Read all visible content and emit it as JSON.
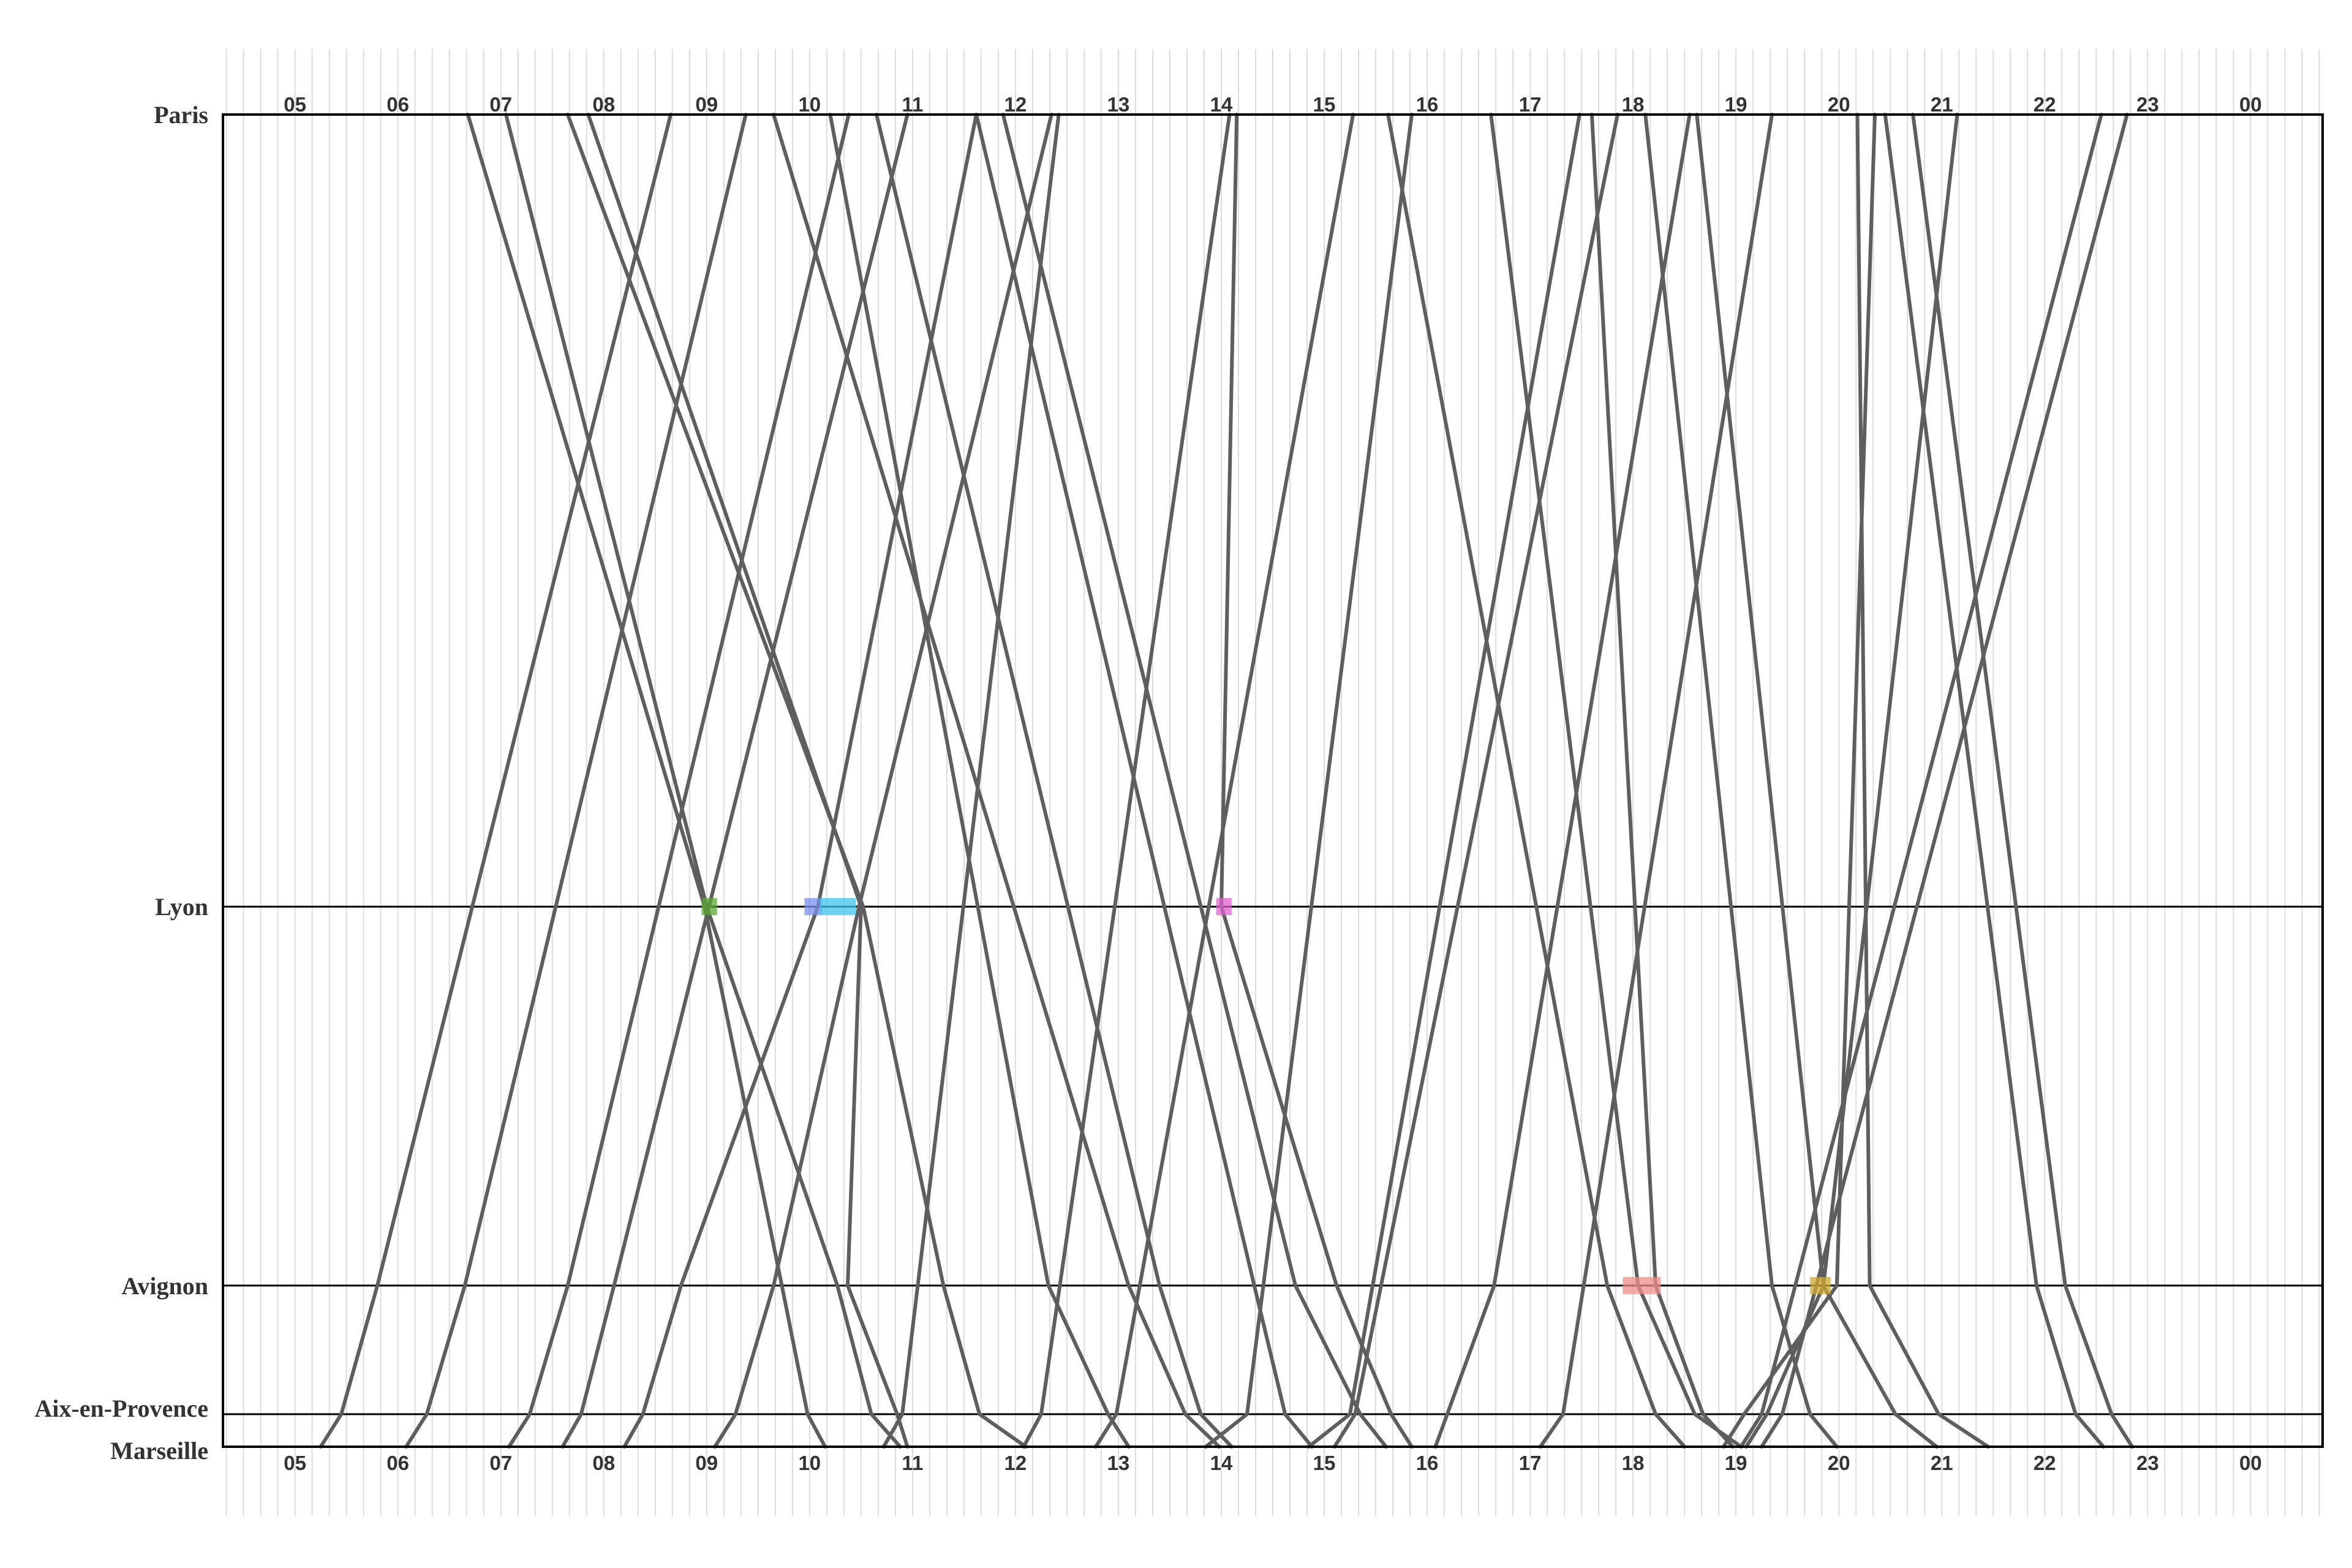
{
  "chart_data": {
    "type": "line",
    "title": "",
    "x_axis": {
      "unit": "hour",
      "range": [
        4.3,
        24.7
      ],
      "tick_labels": [
        "05",
        "06",
        "07",
        "08",
        "09",
        "10",
        "11",
        "12",
        "13",
        "14",
        "15",
        "16",
        "17",
        "18",
        "19",
        "20",
        "21",
        "22",
        "23",
        "00"
      ],
      "tick_hours": [
        5,
        6,
        7,
        8,
        9,
        10,
        11,
        12,
        13,
        14,
        15,
        16,
        17,
        18,
        19,
        20,
        21,
        22,
        23,
        24
      ],
      "minor_grid_step_min": 10,
      "labels_top_and_bottom": true
    },
    "y_axis": {
      "unit": "km",
      "range": [
        0,
        777
      ],
      "inverted": true
    },
    "stations": [
      {
        "name": "Paris",
        "km": 0
      },
      {
        "name": "Lyon",
        "km": 462
      },
      {
        "name": "Avignon",
        "km": 683
      },
      {
        "name": "Aix-en-Provence",
        "km": 758
      },
      {
        "name": "Marseille",
        "km": 777
      }
    ],
    "trips": [
      {
        "dir": "S",
        "stops": [
          [
            6.68,
            0
          ],
          [
            8.98,
            462
          ],
          [
            9.73,
            683
          ],
          [
            9.98,
            758
          ],
          [
            10.15,
            777
          ]
        ]
      },
      {
        "dir": "S",
        "stops": [
          [
            7.05,
            0
          ],
          [
            9.0,
            462
          ],
          [
            10.27,
            683
          ],
          [
            10.6,
            758
          ],
          [
            10.88,
            777
          ]
        ]
      },
      {
        "dir": "S",
        "stops": [
          [
            7.65,
            0
          ],
          [
            10.52,
            462
          ],
          [
            11.3,
            683
          ],
          [
            11.65,
            758
          ],
          [
            12.1,
            777
          ]
        ]
      },
      {
        "dir": "S",
        "stops": [
          [
            7.85,
            0
          ],
          [
            10.5,
            462
          ],
          [
            10.37,
            683
          ],
          [
            10.85,
            758
          ],
          [
            10.95,
            777
          ]
        ]
      },
      {
        "dir": "S",
        "stops": [
          [
            9.65,
            0
          ],
          [
            13.1,
            683
          ],
          [
            13.65,
            758
          ],
          [
            13.98,
            777
          ]
        ]
      },
      {
        "dir": "S",
        "stops": [
          [
            10.2,
            0
          ],
          [
            12.32,
            683
          ],
          [
            12.9,
            758
          ],
          [
            13.1,
            777
          ]
        ]
      },
      {
        "dir": "S",
        "stops": [
          [
            10.65,
            0
          ],
          [
            13.4,
            683
          ],
          [
            13.8,
            758
          ],
          [
            14.1,
            777
          ]
        ]
      },
      {
        "dir": "S",
        "stops": [
          [
            11.62,
            0
          ],
          [
            14.32,
            683
          ],
          [
            14.62,
            758
          ],
          [
            14.88,
            777
          ]
        ]
      },
      {
        "dir": "S",
        "stops": [
          [
            11.88,
            0
          ],
          [
            14.72,
            683
          ],
          [
            15.35,
            758
          ],
          [
            15.6,
            777
          ]
        ]
      },
      {
        "dir": "S",
        "stops": [
          [
            14.15,
            0
          ],
          [
            14.0,
            462
          ],
          [
            15.12,
            683
          ],
          [
            15.65,
            758
          ],
          [
            15.85,
            777
          ]
        ]
      },
      {
        "dir": "S",
        "stops": [
          [
            15.62,
            0
          ],
          [
            17.75,
            683
          ],
          [
            18.22,
            758
          ],
          [
            18.5,
            777
          ]
        ]
      },
      {
        "dir": "S",
        "stops": [
          [
            16.62,
            0
          ],
          [
            18.05,
            683
          ],
          [
            18.6,
            758
          ],
          [
            19.05,
            777
          ]
        ]
      },
      {
        "dir": "S",
        "stops": [
          [
            17.6,
            0
          ],
          [
            18.22,
            683
          ],
          [
            18.68,
            758
          ],
          [
            18.97,
            777
          ]
        ]
      },
      {
        "dir": "S",
        "stops": [
          [
            18.12,
            0
          ],
          [
            19.35,
            683
          ],
          [
            19.72,
            758
          ],
          [
            19.98,
            777
          ]
        ]
      },
      {
        "dir": "S",
        "stops": [
          [
            18.62,
            0
          ],
          [
            19.85,
            683
          ],
          [
            20.55,
            758
          ],
          [
            20.95,
            777
          ]
        ]
      },
      {
        "dir": "S",
        "stops": [
          [
            20.18,
            0
          ],
          [
            20.3,
            683
          ],
          [
            20.97,
            758
          ],
          [
            21.45,
            777
          ]
        ]
      },
      {
        "dir": "S",
        "stops": [
          [
            20.45,
            0
          ],
          [
            21.92,
            683
          ],
          [
            22.3,
            758
          ],
          [
            22.57,
            777
          ]
        ]
      },
      {
        "dir": "S",
        "stops": [
          [
            20.72,
            0
          ],
          [
            22.2,
            683
          ],
          [
            22.65,
            758
          ],
          [
            22.85,
            777
          ]
        ]
      },
      {
        "dir": "N",
        "stops": [
          [
            5.25,
            777
          ],
          [
            5.45,
            758
          ],
          [
            5.8,
            683
          ],
          [
            8.65,
            0
          ]
        ]
      },
      {
        "dir": "N",
        "stops": [
          [
            6.08,
            777
          ],
          [
            6.28,
            758
          ],
          [
            6.65,
            683
          ],
          [
            9.38,
            0
          ]
        ]
      },
      {
        "dir": "N",
        "stops": [
          [
            7.08,
            777
          ],
          [
            7.28,
            758
          ],
          [
            7.65,
            683
          ],
          [
            10.38,
            0
          ]
        ]
      },
      {
        "dir": "N",
        "stops": [
          [
            7.6,
            777
          ],
          [
            7.78,
            758
          ],
          [
            8.1,
            683
          ],
          [
            10.95,
            0
          ]
        ]
      },
      {
        "dir": "N",
        "stops": [
          [
            8.2,
            777
          ],
          [
            8.38,
            758
          ],
          [
            8.75,
            683
          ],
          [
            10.08,
            462
          ],
          [
            11.62,
            0
          ]
        ]
      },
      {
        "dir": "N",
        "stops": [
          [
            9.08,
            777
          ],
          [
            9.28,
            758
          ],
          [
            9.65,
            683
          ],
          [
            10.48,
            462
          ],
          [
            12.35,
            0
          ]
        ]
      },
      {
        "dir": "N",
        "stops": [
          [
            10.72,
            777
          ],
          [
            10.9,
            758
          ],
          [
            12.42,
            0
          ]
        ]
      },
      {
        "dir": "N",
        "stops": [
          [
            12.08,
            777
          ],
          [
            12.25,
            758
          ],
          [
            14.08,
            0
          ]
        ]
      },
      {
        "dir": "N",
        "stops": [
          [
            12.78,
            777
          ],
          [
            12.98,
            758
          ],
          [
            15.28,
            0
          ]
        ]
      },
      {
        "dir": "N",
        "stops": [
          [
            13.85,
            777
          ],
          [
            14.25,
            758
          ],
          [
            15.85,
            0
          ]
        ]
      },
      {
        "dir": "N",
        "stops": [
          [
            14.85,
            777
          ],
          [
            15.25,
            758
          ],
          [
            17.48,
            0
          ]
        ]
      },
      {
        "dir": "N",
        "stops": [
          [
            15.1,
            777
          ],
          [
            15.3,
            758
          ],
          [
            17.85,
            0
          ]
        ]
      },
      {
        "dir": "N",
        "stops": [
          [
            16.08,
            777
          ],
          [
            16.65,
            683
          ],
          [
            18.55,
            0
          ]
        ]
      },
      {
        "dir": "N",
        "stops": [
          [
            17.1,
            777
          ],
          [
            17.32,
            758
          ],
          [
            19.35,
            0
          ]
        ]
      },
      {
        "dir": "N",
        "stops": [
          [
            18.88,
            777
          ],
          [
            19.08,
            758
          ],
          [
            19.98,
            683
          ],
          [
            20.35,
            0
          ]
        ]
      },
      {
        "dir": "N",
        "stops": [
          [
            19.1,
            777
          ],
          [
            19.3,
            758
          ],
          [
            19.85,
            683
          ],
          [
            21.15,
            0
          ]
        ]
      },
      {
        "dir": "N",
        "stops": [
          [
            19.25,
            777
          ],
          [
            19.45,
            758
          ],
          [
            22.8,
            0
          ]
        ]
      },
      {
        "dir": "N",
        "stops": [
          [
            19.05,
            777
          ],
          [
            19.25,
            758
          ],
          [
            22.55,
            0
          ]
        ]
      }
    ],
    "highlights": [
      {
        "station": "Lyon",
        "from": 8.95,
        "to": 9.1,
        "color": "#5aa832"
      },
      {
        "station": "Lyon",
        "from": 9.95,
        "to": 10.12,
        "color": "#7a8ef0"
      },
      {
        "station": "Lyon",
        "from": 10.1,
        "to": 10.45,
        "color": "#3cc4ec"
      },
      {
        "station": "Lyon",
        "from": 13.95,
        "to": 14.1,
        "color": "#e060d0"
      },
      {
        "station": "Avignon",
        "from": 17.9,
        "to": 18.27,
        "color": "#f08c8c"
      },
      {
        "station": "Avignon",
        "from": 19.72,
        "to": 19.92,
        "color": "#d0a832"
      }
    ],
    "colors": {
      "trip_line": "#5e5e5e",
      "station_line": "#000000",
      "grid": "#dcdcdc"
    }
  }
}
